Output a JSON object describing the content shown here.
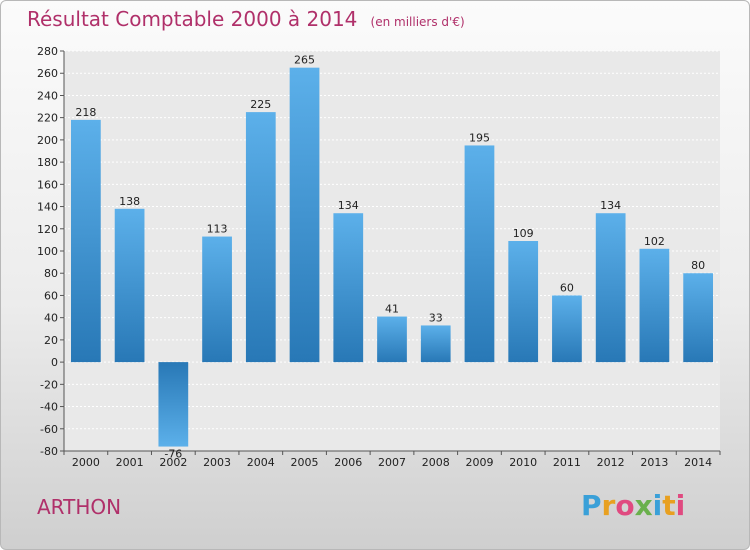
{
  "header": {
    "title": "Résultat Comptable 2000 à 2014",
    "subtitle": "(en milliers d'€)"
  },
  "footer": {
    "town": "ARTHON",
    "logo_text": "Proxiti",
    "logo_colors": [
      "#3aa0d8",
      "#e8a020",
      "#e04a80",
      "#6ab04c",
      "#3aa0d8",
      "#e8a020",
      "#e04a80"
    ]
  },
  "chart_data": {
    "type": "bar",
    "title": "Résultat Comptable 2000 à 2014",
    "ylabel": "en milliers d'€",
    "xlabel": "",
    "categories": [
      "2000",
      "2001",
      "2002",
      "2003",
      "2004",
      "2005",
      "2006",
      "2007",
      "2008",
      "2009",
      "2010",
      "2011",
      "2012",
      "2013",
      "2014"
    ],
    "values": [
      218,
      138,
      -76,
      113,
      225,
      265,
      134,
      41,
      33,
      195,
      109,
      60,
      134,
      102,
      80
    ],
    "ylim": [
      -80,
      280
    ],
    "yticks": [
      280,
      260,
      240,
      220,
      200,
      180,
      160,
      140,
      120,
      100,
      80,
      60,
      40,
      20,
      0,
      -20,
      -40,
      -60,
      -80
    ],
    "grid": true,
    "bar_color_top": "#5aaee8",
    "bar_color_bottom": "#2a7ab8"
  }
}
